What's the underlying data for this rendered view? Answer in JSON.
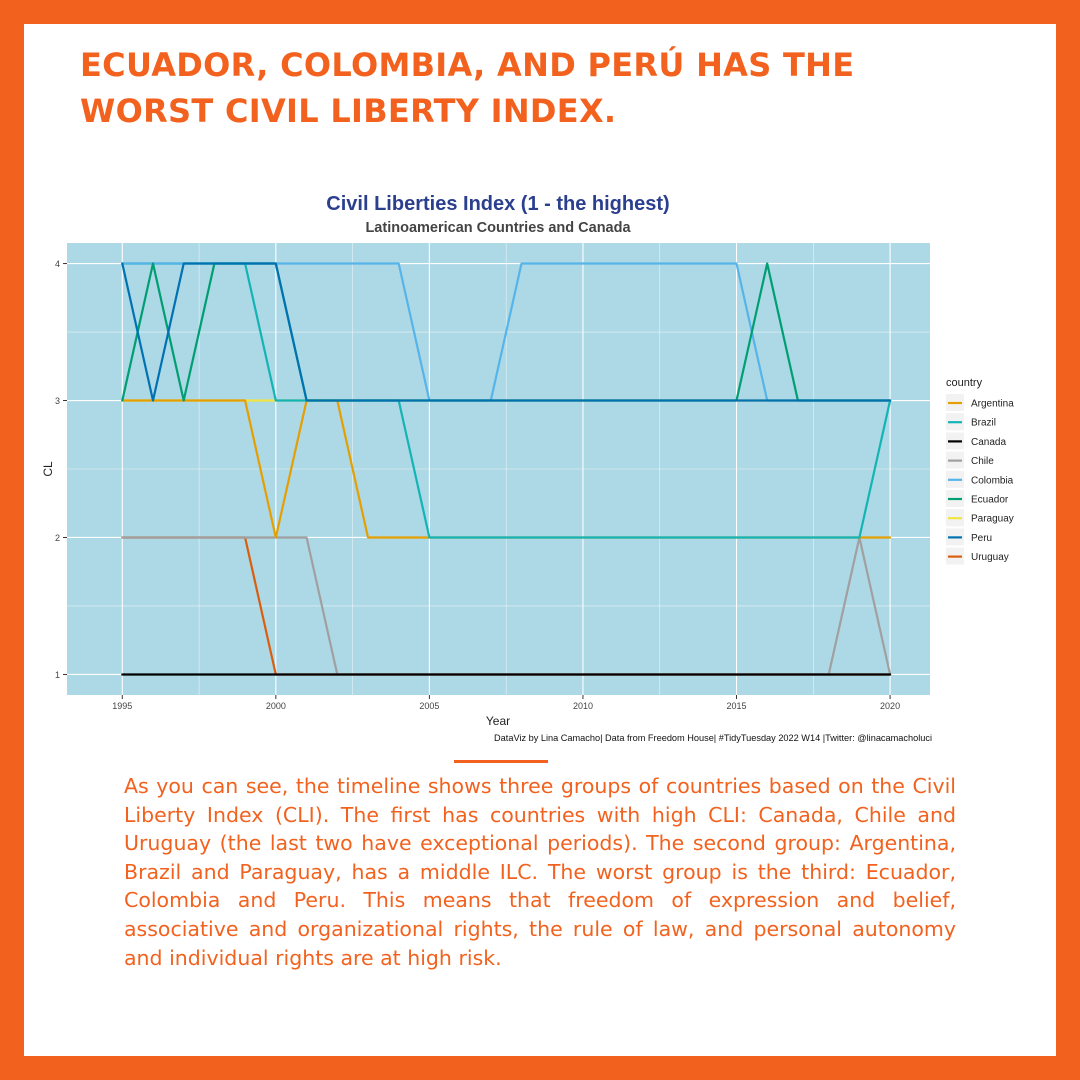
{
  "headline": "ECUADOR, COLOMBIA, AND PERÚ HAS THE WORST CIVIL LIBERTY INDEX.",
  "body_text": "As you can see, the timeline shows three groups of countries based on the Civil Liberty Index (CLI). The first has countries with high CLI: Canada, Chile and Uruguay (the last two have exceptional periods). The second group: Argentina, Brazil and Paraguay, has a middle ILC. The worst group is the third: Ecuador, Colombia and Peru. This means that freedom of expression and belief, associative and organizational rights, the rule of law, and personal autonomy and individual rights are at high risk.",
  "colors": {
    "accent": "#f2621e",
    "panel": "#add8e6",
    "title": "#2b3f8f"
  },
  "chart_data": {
    "type": "line",
    "title": "Civil Liberties Index (1 - the highest)",
    "subtitle": "Latinoamerican Countries and Canada",
    "xlabel": "Year",
    "ylabel": "CL",
    "caption": "DataViz by Lina Camacho| Data from Freedom House| #TidyTuesday 2022 W14 |Twitter: @linacamacholuci",
    "legend_title": "country",
    "legend_position": "right",
    "grid": true,
    "xlim": [
      1993.2,
      2021.3
    ],
    "ylim": [
      0.85,
      4.15
    ],
    "x_ticks": [
      1995,
      2000,
      2005,
      2010,
      2015,
      2020
    ],
    "y_ticks": [
      1,
      2,
      3,
      4
    ],
    "x": [
      1995,
      1996,
      1997,
      1998,
      1999,
      2000,
      2001,
      2002,
      2003,
      2004,
      2005,
      2006,
      2007,
      2008,
      2009,
      2010,
      2011,
      2012,
      2013,
      2014,
      2015,
      2016,
      2017,
      2018,
      2019,
      2020
    ],
    "series": [
      {
        "name": "Uruguay",
        "color": "#d95f0e",
        "values": [
          2,
          2,
          2,
          2,
          2,
          1,
          1,
          1,
          1,
          1,
          1,
          1,
          1,
          1,
          1,
          1,
          1,
          1,
          1,
          1,
          1,
          1,
          1,
          1,
          1,
          1
        ]
      },
      {
        "name": "Chile",
        "color": "#a0a0a0",
        "values": [
          2,
          2,
          2,
          2,
          2,
          2,
          2,
          1,
          1,
          1,
          1,
          1,
          1,
          1,
          1,
          1,
          1,
          1,
          1,
          1,
          1,
          1,
          1,
          1,
          2,
          1
        ]
      },
      {
        "name": "Canada",
        "color": "#000000",
        "values": [
          1,
          1,
          1,
          1,
          1,
          1,
          1,
          1,
          1,
          1,
          1,
          1,
          1,
          1,
          1,
          1,
          1,
          1,
          1,
          1,
          1,
          1,
          1,
          1,
          1,
          1
        ]
      },
      {
        "name": "Paraguay",
        "color": "#f0e442",
        "values": [
          3,
          3,
          3,
          3,
          3,
          3,
          3,
          3,
          3,
          3,
          3,
          3,
          3,
          3,
          3,
          3,
          3,
          3,
          3,
          3,
          3,
          3,
          3,
          3,
          3,
          3
        ]
      },
      {
        "name": "Argentina",
        "color": "#e69f00",
        "values": [
          3,
          3,
          3,
          3,
          3,
          2,
          3,
          3,
          2,
          2,
          2,
          2,
          2,
          2,
          2,
          2,
          2,
          2,
          2,
          2,
          2,
          2,
          2,
          2,
          2,
          2
        ]
      },
      {
        "name": "Brazil",
        "color": "#13b4b5",
        "values": [
          4,
          4,
          4,
          4,
          4,
          3,
          3,
          3,
          3,
          3,
          2,
          2,
          2,
          2,
          2,
          2,
          2,
          2,
          2,
          2,
          2,
          2,
          2,
          2,
          2,
          3
        ]
      },
      {
        "name": "Colombia",
        "color": "#56b4e9",
        "values": [
          4,
          4,
          4,
          4,
          4,
          4,
          4,
          4,
          4,
          4,
          3,
          3,
          3,
          4,
          4,
          4,
          4,
          4,
          4,
          4,
          4,
          3,
          3,
          3,
          3,
          3
        ]
      },
      {
        "name": "Ecuador",
        "color": "#009e73",
        "values": [
          3,
          4,
          3,
          4,
          4,
          4,
          3,
          3,
          3,
          3,
          3,
          3,
          3,
          3,
          3,
          3,
          3,
          3,
          3,
          3,
          3,
          4,
          3,
          3,
          3,
          3
        ]
      },
      {
        "name": "Peru",
        "color": "#0072b2",
        "values": [
          4,
          3,
          4,
          4,
          4,
          4,
          3,
          3,
          3,
          3,
          3,
          3,
          3,
          3,
          3,
          3,
          3,
          3,
          3,
          3,
          3,
          3,
          3,
          3,
          3,
          3
        ]
      }
    ],
    "legend_order": [
      "Argentina",
      "Brazil",
      "Canada",
      "Chile",
      "Colombia",
      "Ecuador",
      "Paraguay",
      "Peru",
      "Uruguay"
    ]
  }
}
